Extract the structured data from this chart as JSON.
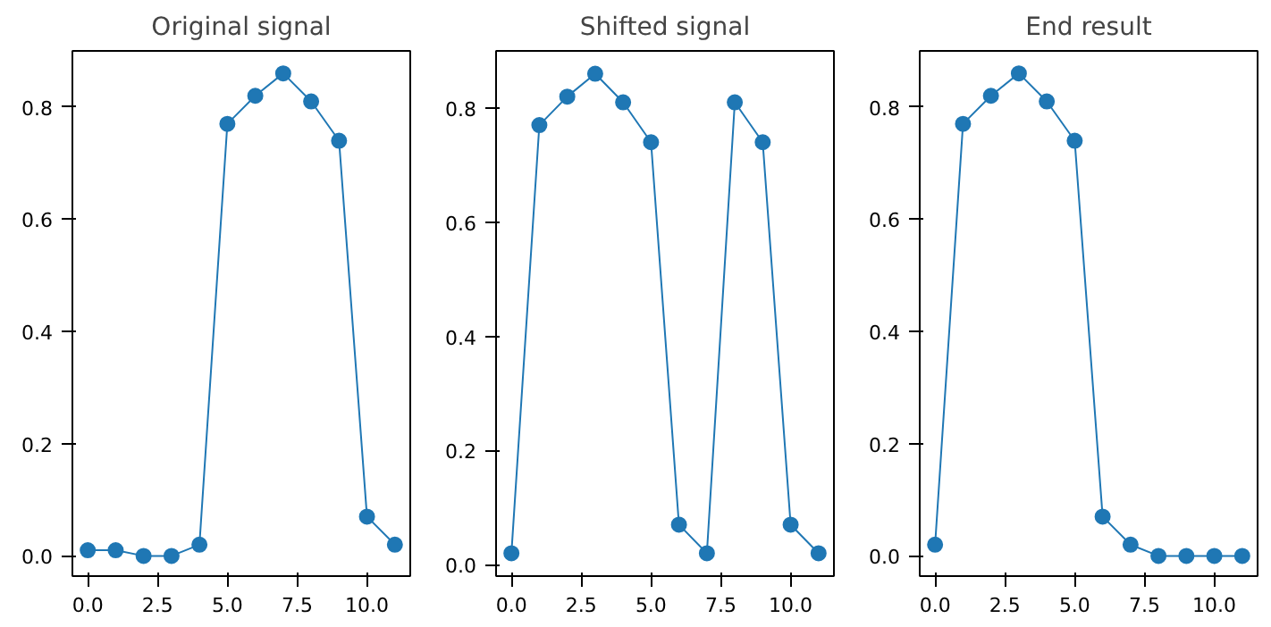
{
  "chart_data": [
    {
      "type": "line",
      "title": "Original signal",
      "x": [
        0,
        1,
        2,
        3,
        4,
        5,
        6,
        7,
        8,
        9,
        10,
        11
      ],
      "values": [
        0.01,
        0.01,
        0.0,
        0.0,
        0.02,
        0.77,
        0.82,
        0.86,
        0.81,
        0.74,
        0.07,
        0.02
      ],
      "color": "#1f77b4",
      "marker": "circle",
      "line_style": "solid",
      "grid": false,
      "xlim": [
        -0.55,
        11.55
      ],
      "ylim": [
        -0.036,
        0.9
      ],
      "xticks": [
        {
          "value": 0,
          "label": "0.0"
        },
        {
          "value": 2.5,
          "label": "2.5"
        },
        {
          "value": 5,
          "label": "5.0"
        },
        {
          "value": 7.5,
          "label": "7.5"
        },
        {
          "value": 10,
          "label": "10.0"
        }
      ],
      "yticks": [
        {
          "value": 0,
          "label": "0.0"
        },
        {
          "value": 0.2,
          "label": "0.2"
        },
        {
          "value": 0.4,
          "label": "0.4"
        },
        {
          "value": 0.6,
          "label": "0.6"
        },
        {
          "value": 0.8,
          "label": "0.8"
        }
      ]
    },
    {
      "type": "line",
      "title": "Shifted signal",
      "x": [
        0,
        1,
        2,
        3,
        4,
        5,
        6,
        7,
        8,
        9,
        10,
        11
      ],
      "values": [
        0.02,
        0.77,
        0.82,
        0.86,
        0.81,
        0.74,
        0.07,
        0.02,
        0.81,
        0.74,
        0.07,
        0.02
      ],
      "color": "#1f77b4",
      "marker": "circle",
      "line_style": "solid",
      "grid": false,
      "xlim": [
        -0.55,
        11.55
      ],
      "ylim": [
        -0.02,
        0.9
      ],
      "xticks": [
        {
          "value": 0,
          "label": "0.0"
        },
        {
          "value": 2.5,
          "label": "2.5"
        },
        {
          "value": 5,
          "label": "5.0"
        },
        {
          "value": 7.5,
          "label": "7.5"
        },
        {
          "value": 10,
          "label": "10.0"
        }
      ],
      "yticks": [
        {
          "value": 0,
          "label": "0.0"
        },
        {
          "value": 0.2,
          "label": "0.2"
        },
        {
          "value": 0.4,
          "label": "0.4"
        },
        {
          "value": 0.6,
          "label": "0.6"
        },
        {
          "value": 0.8,
          "label": "0.8"
        }
      ]
    },
    {
      "type": "line",
      "title": "End result",
      "x": [
        0,
        1,
        2,
        3,
        4,
        5,
        6,
        7,
        8,
        9,
        10,
        11
      ],
      "values": [
        0.02,
        0.77,
        0.82,
        0.86,
        0.81,
        0.74,
        0.07,
        0.02,
        0.0,
        0.0,
        0.0,
        0.0
      ],
      "color": "#1f77b4",
      "marker": "circle",
      "line_style": "solid",
      "grid": false,
      "xlim": [
        -0.55,
        11.55
      ],
      "ylim": [
        -0.036,
        0.9
      ],
      "xticks": [
        {
          "value": 0,
          "label": "0.0"
        },
        {
          "value": 2.5,
          "label": "2.5"
        },
        {
          "value": 5,
          "label": "5.0"
        },
        {
          "value": 7.5,
          "label": "7.5"
        },
        {
          "value": 10,
          "label": "10.0"
        }
      ],
      "yticks": [
        {
          "value": 0,
          "label": "0.0"
        },
        {
          "value": 0.2,
          "label": "0.2"
        },
        {
          "value": 0.4,
          "label": "0.4"
        },
        {
          "value": 0.6,
          "label": "0.6"
        },
        {
          "value": 0.8,
          "label": "0.8"
        }
      ]
    }
  ]
}
